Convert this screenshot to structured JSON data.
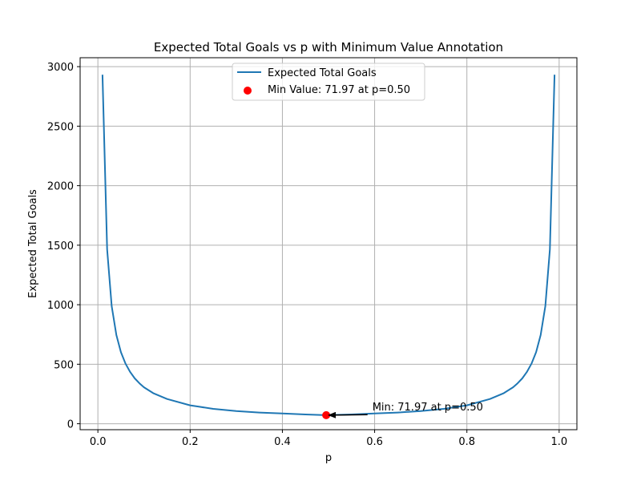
{
  "chart_data": {
    "type": "line",
    "title": "Expected Total Goals vs p with Minimum Value Annotation",
    "xlabel": "p",
    "ylabel": "Expected Total Goals",
    "xlim": [
      -0.0385,
      1.0385
    ],
    "ylim": [
      -50,
      3075
    ],
    "xticks": [
      0.0,
      0.2,
      0.4,
      0.6,
      0.8,
      1.0
    ],
    "xtick_labels": [
      "0.0",
      "0.2",
      "0.4",
      "0.6",
      "0.8",
      "1.0"
    ],
    "yticks": [
      0,
      500,
      1000,
      1500,
      2000,
      2500,
      3000
    ],
    "ytick_labels": [
      "0",
      "500",
      "1000",
      "1500",
      "2000",
      "2500",
      "3000"
    ],
    "grid": true,
    "legend_position": "top-center",
    "series": [
      {
        "name": "Expected Total Goals",
        "color": "#1f77b4",
        "x": [
          0.01,
          0.02,
          0.03,
          0.04,
          0.05,
          0.06,
          0.07,
          0.08,
          0.09,
          0.1,
          0.12,
          0.15,
          0.2,
          0.25,
          0.3,
          0.35,
          0.4,
          0.45,
          0.495,
          0.55,
          0.6,
          0.65,
          0.7,
          0.75,
          0.8,
          0.85,
          0.88,
          0.9,
          0.91,
          0.92,
          0.93,
          0.94,
          0.95,
          0.96,
          0.97,
          0.98,
          0.99
        ],
        "y": [
          2932,
          1466,
          988,
          747,
          602,
          504,
          434,
          381,
          340,
          306,
          257,
          208,
          155,
          125,
          106,
          94,
          86,
          78,
          72,
          78,
          86,
          94,
          106,
          125,
          155,
          208,
          257,
          306,
          340,
          381,
          434,
          504,
          602,
          747,
          988,
          1466,
          2932
        ]
      },
      {
        "name": "Min Value: 71.97 at p=0.50",
        "type": "scatter",
        "color": "#ff0000",
        "x": [
          0.495
        ],
        "y": [
          71.97
        ]
      }
    ],
    "annotations": [
      {
        "text": "Min: 71.97 at p=0.50",
        "x": 0.495,
        "y": 71.97,
        "text_x": 0.595,
        "text_y": 110
      }
    ]
  }
}
